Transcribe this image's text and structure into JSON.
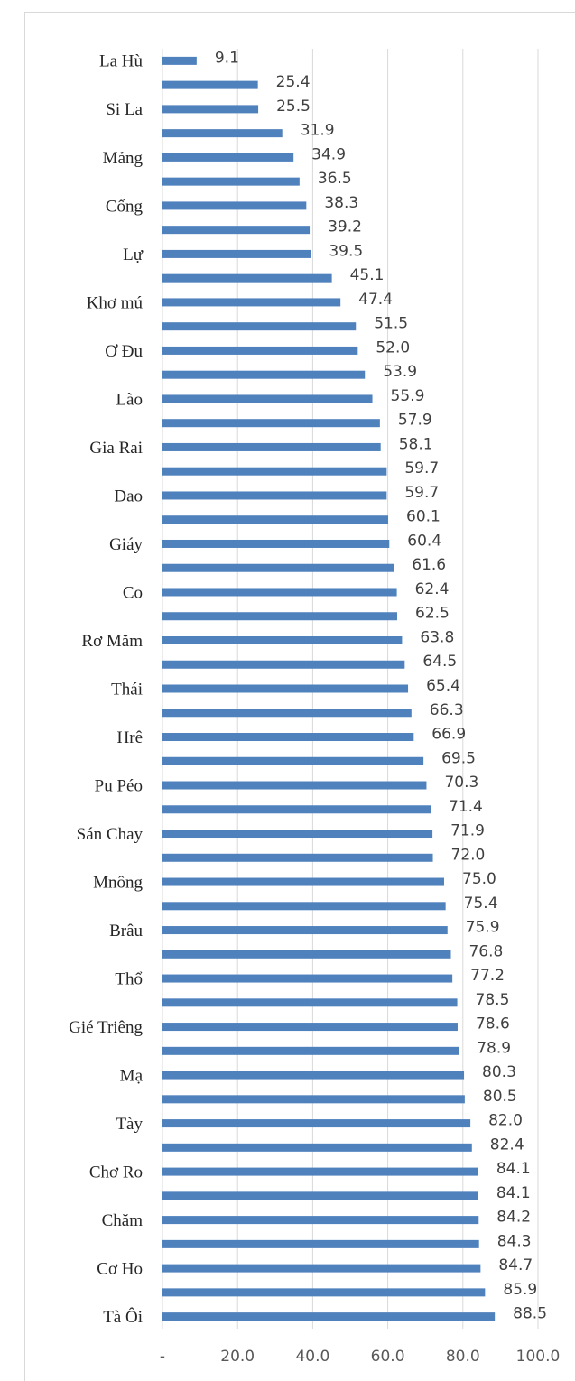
{
  "chart_data": {
    "type": "barh",
    "categories": [
      "La Hù",
      null,
      "Si La",
      null,
      "Mảng",
      null,
      "Cống",
      null,
      "Lự",
      null,
      "Khơ mú",
      null,
      "Ơ Đu",
      null,
      "Lào",
      null,
      "Gia Rai",
      null,
      "Dao",
      null,
      "Giáy",
      null,
      "Co",
      null,
      "Rơ Măm",
      null,
      "Thái",
      null,
      "Hrê",
      null,
      "Pu Péo",
      null,
      "Sán Chay",
      null,
      "Mnông",
      null,
      "Brâu",
      null,
      "Thổ",
      null,
      "Gié Triêng",
      null,
      "Mạ",
      null,
      "Tày",
      null,
      "Chơ Ro",
      null,
      "Chăm",
      null,
      "Cơ Ho",
      null,
      "Tà Ôi"
    ],
    "values": [
      9.1,
      25.4,
      25.5,
      31.9,
      34.9,
      36.5,
      38.3,
      39.2,
      39.5,
      45.1,
      47.4,
      51.5,
      52.0,
      53.9,
      55.9,
      57.9,
      58.1,
      59.7,
      59.7,
      60.1,
      60.4,
      61.6,
      62.4,
      62.5,
      63.8,
      64.5,
      65.4,
      66.3,
      66.9,
      69.5,
      70.3,
      71.4,
      71.9,
      72.0,
      75.0,
      75.4,
      75.9,
      76.8,
      77.2,
      78.5,
      78.6,
      78.9,
      80.3,
      80.5,
      82.0,
      82.4,
      84.1,
      84.1,
      84.2,
      84.3,
      84.7,
      85.9,
      88.5
    ],
    "value_labels": [
      "9.1",
      "25.4",
      "25.5",
      "31.9",
      "34.9",
      "36.5",
      "38.3",
      "39.2",
      "39.5",
      "45.1",
      "47.4",
      "51.5",
      "52.0",
      "53.9",
      "55.9",
      "57.9",
      "58.1",
      "59.7",
      "59.7",
      "60.1",
      "60.4",
      "61.6",
      "62.4",
      "62.5",
      "63.8",
      "64.5",
      "65.4",
      "66.3",
      "66.9",
      "69.5",
      "70.3",
      "71.4",
      "71.9",
      "72.0",
      "75.0",
      "75.4",
      "75.9",
      "76.8",
      "77.2",
      "78.5",
      "78.6",
      "78.9",
      "80.3",
      "80.5",
      "82.0",
      "82.4",
      "84.1",
      "84.1",
      "84.2",
      "84.3",
      "84.7",
      "85.9",
      "88.5"
    ],
    "color": "#4f81bd",
    "xlim": [
      0,
      100
    ],
    "xticks": [
      {
        "value": 0,
        "label": "-"
      },
      {
        "value": 20,
        "label": "20.0"
      },
      {
        "value": 40,
        "label": "40.0"
      },
      {
        "value": 60,
        "label": "60.0"
      },
      {
        "value": 80,
        "label": "80.0"
      },
      {
        "value": 100,
        "label": "100.0"
      }
    ],
    "grid": true
  }
}
